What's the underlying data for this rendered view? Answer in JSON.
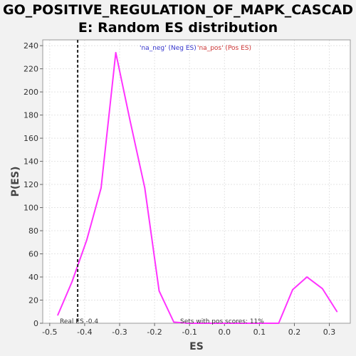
{
  "title_line1": "GO_POSITIVE_REGULATION_OF_MAPK_CASCAD",
  "title_line2": "E: Random ES distribution",
  "chart_data": {
    "type": "line",
    "xlabel": "ES",
    "ylabel": "P(ES)",
    "xlim": [
      -0.52,
      0.36
    ],
    "ylim": [
      0,
      245
    ],
    "xticks": [
      -0.5,
      -0.4,
      -0.3,
      -0.2,
      -0.1,
      0.0,
      0.1,
      0.2,
      0.3
    ],
    "xtick_labels": [
      "-0.5",
      "-0.4",
      "-0.3",
      "-0.2",
      "-0.1",
      "0.0",
      "0.1",
      "0.2",
      "0.3"
    ],
    "yticks": [
      0,
      20,
      40,
      60,
      80,
      100,
      120,
      140,
      160,
      180,
      200,
      220,
      240
    ],
    "ytick_labels": [
      "0",
      "20",
      "40",
      "60",
      "80",
      "100",
      "120",
      "140",
      "160",
      "180",
      "200",
      "220",
      "240"
    ],
    "grid": true,
    "series": [
      {
        "color": "#ff33ff",
        "x": [
          -0.477,
          -0.436,
          -0.394,
          -0.353,
          -0.311,
          -0.27,
          -0.228,
          -0.187,
          -0.145,
          -0.104,
          -0.062,
          -0.021,
          0.021,
          0.062,
          0.104,
          0.145,
          0.155,
          0.195,
          0.236,
          0.28,
          0.322
        ],
        "y": [
          7,
          36,
          72,
          117,
          234,
          175,
          117,
          28,
          1,
          0,
          0,
          0,
          0,
          0,
          0,
          0,
          0,
          29,
          40,
          30,
          10
        ]
      }
    ],
    "real_es": -0.42,
    "real_es_label": "Real ES -0.4",
    "annotation": "Sets with pos scores: 11%",
    "legend": {
      "position": "top-center",
      "neg_label": "'na_neg' (Neg ES)",
      "pos_label": "'na_pos' (Pos ES)",
      "neg_color": "#3333cc",
      "pos_color": "#cc3333"
    }
  }
}
